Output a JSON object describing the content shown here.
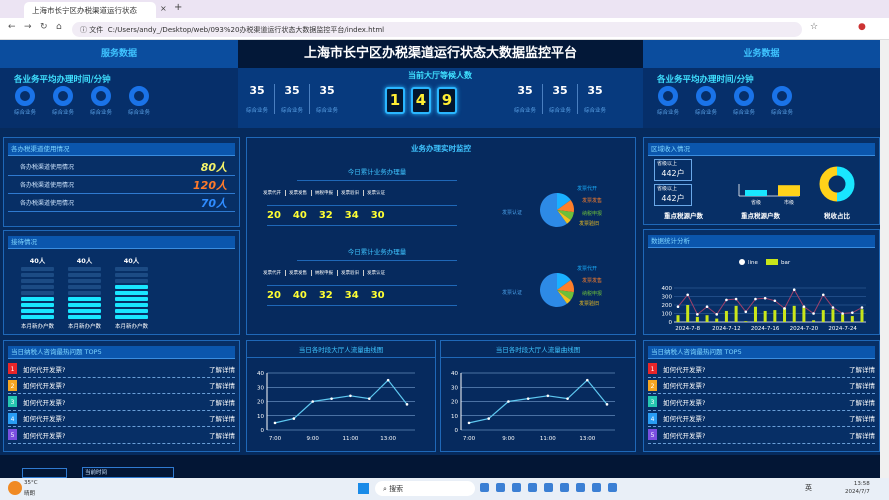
{
  "browser": {
    "tab_title": "上海市长宁区办税渠道运行状态",
    "url_prefix": "文件",
    "url": "C:/Users/andy_/Desktop/web/093%20办税渠道运行状态大数据监控平台/index.html"
  },
  "header": {
    "left_title": "服务数据",
    "title": "上海市长宁区办税渠道运行状态大数据监控平台",
    "right_title": "业务数据",
    "avg_time_label": "各业务平均办理时间/分钟",
    "rings": [
      "综合业务",
      "综合业务",
      "综合业务",
      "综合业务"
    ],
    "stats_left": [
      {
        "value": "35",
        "label": "综合业务"
      },
      {
        "value": "35",
        "label": "综合业务"
      },
      {
        "value": "35",
        "label": "综合业务"
      }
    ],
    "stats_right": [
      {
        "value": "35",
        "label": "综合业务"
      },
      {
        "value": "35",
        "label": "综合业务"
      },
      {
        "value": "35",
        "label": "综合业务"
      }
    ],
    "waiting_label": "当前大厅等候人数",
    "waiting_digits": [
      "1",
      "4",
      "9"
    ]
  },
  "channel": {
    "title": "各办税渠道使用情况",
    "rows": [
      {
        "label": "各办税渠道使用情况",
        "value": "80人",
        "color": "#f3f36a"
      },
      {
        "label": "各办税渠道使用情况",
        "value": "120人",
        "color": "#ff7a2a"
      },
      {
        "label": "各办税渠道使用情况",
        "value": "70人",
        "color": "#2f8cff"
      }
    ]
  },
  "reception": {
    "title": "接待情况",
    "cols": [
      {
        "value": "40人",
        "label": "本月新办户数",
        "level": 4
      },
      {
        "value": "40人",
        "label": "本月新办户数",
        "level": 4
      },
      {
        "value": "40人",
        "label": "本月新办户数",
        "level": 6
      }
    ],
    "segments": 9
  },
  "monitor": {
    "title": "业务办理实时监控",
    "blocks": [
      {
        "subtitle": "今日累计业务办理量",
        "items": [
          "发票代开",
          "发票发售",
          "纳税申报",
          "发票验旧",
          "发票认证"
        ],
        "values": [
          "20",
          "40",
          "32",
          "34",
          "30"
        ]
      },
      {
        "subtitle": "今日累计业务办理量",
        "items": [
          "发票代开",
          "发票发售",
          "纳税申报",
          "发票验旧",
          "发票认证"
        ],
        "values": [
          "20",
          "40",
          "32",
          "34",
          "30"
        ]
      }
    ]
  },
  "chart_data": [
    {
      "type": "pie",
      "categories": [
        "发票代开",
        "发票发售",
        "纳税申报",
        "发票验旧",
        "发票认证"
      ],
      "values": [
        15,
        12,
        8,
        5,
        60
      ],
      "colors": [
        "#1ab0ff",
        "#ff7f2a",
        "#6cbf3a",
        "#f0c020",
        "#2d8ae6"
      ]
    },
    {
      "type": "pie",
      "categories": [
        "发票代开",
        "发票发售",
        "纳税申报",
        "发票验旧",
        "发票认证"
      ],
      "values": [
        15,
        12,
        8,
        5,
        60
      ],
      "colors": [
        "#1ab0ff",
        "#ff7f2a",
        "#6cbf3a",
        "#f0c020",
        "#2d8ae6"
      ]
    },
    {
      "type": "line",
      "title": "当日各时段大厅人流量曲线图",
      "x": [
        "7:00",
        "8:00",
        "9:00",
        "10:00",
        "11:00",
        "12:00",
        "13:00",
        "14:00"
      ],
      "values": [
        5,
        8,
        20,
        22,
        24,
        22,
        35,
        18
      ],
      "xticks": [
        "7:00",
        "9:00",
        "11:00",
        "13:00"
      ],
      "ylim": [
        0,
        40
      ],
      "yticks": [
        0,
        10,
        20,
        30,
        40
      ]
    },
    {
      "type": "line",
      "title": "当日各时段大厅人流量曲线图",
      "x": [
        "7:00",
        "8:00",
        "9:00",
        "10:00",
        "11:00",
        "12:00",
        "13:00",
        "14:00"
      ],
      "values": [
        5,
        8,
        20,
        22,
        24,
        22,
        35,
        18
      ],
      "xticks": [
        "7:00",
        "9:00",
        "11:00",
        "13:00"
      ],
      "ylim": [
        0,
        40
      ],
      "yticks": [
        0,
        10,
        20,
        30,
        40
      ]
    },
    {
      "type": "bar",
      "title": "数据统计分析",
      "legend": [
        "line",
        "bar"
      ],
      "x": [
        "2024-7-7",
        "2024-7-8",
        "2024-7-9",
        "2024-7-10",
        "2024-7-11",
        "2024-7-12",
        "2024-7-13",
        "2024-7-14",
        "2024-7-15",
        "2024-7-16",
        "2024-7-17",
        "2024-7-18",
        "2024-7-19",
        "2024-7-20",
        "2024-7-21",
        "2024-7-22",
        "2024-7-23",
        "2024-7-24",
        "2024-7-25",
        "2024-7-26"
      ],
      "xticks": [
        "2024-7-8",
        "2024-7-12",
        "2024-7-16",
        "2024-7-20",
        "2024-7-24"
      ],
      "ylim": [
        0,
        400
      ],
      "yticks": [
        0,
        100,
        200,
        300,
        400
      ],
      "series": [
        {
          "name": "line",
          "values": [
            180,
            320,
            90,
            180,
            90,
            260,
            270,
            120,
            270,
            280,
            250,
            160,
            380,
            180,
            100,
            320,
            170,
            100,
            110,
            170
          ]
        },
        {
          "name": "bar",
          "values": [
            80,
            200,
            60,
            80,
            40,
            130,
            190,
            10,
            180,
            130,
            140,
            170,
            190,
            180,
            20,
            140,
            150,
            90,
            70,
            150
          ]
        }
      ]
    },
    {
      "type": "bar",
      "categories": [
        "省级",
        "市级"
      ],
      "values": [
        50,
        90
      ]
    },
    {
      "type": "pie",
      "title": "税收占比",
      "values": [
        50,
        50
      ],
      "colors": [
        "#19e6ff",
        "#ffd21a"
      ]
    }
  ],
  "region": {
    "title": "区域收入情况",
    "boxes": [
      {
        "label": "省级以上",
        "value": "442户"
      },
      {
        "label": "省级以上",
        "value": "442户"
      }
    ],
    "caption1": "重点税源户数",
    "caption2": "重点税源户数",
    "caption3": "税收占比"
  },
  "hot": {
    "title": "当日纳税人咨询最热问题 TOP5",
    "items": [
      {
        "rank": "1",
        "q": "如何代开发票?",
        "link": "了解详情",
        "color": "#e8262a"
      },
      {
        "rank": "2",
        "q": "如何代开发票?",
        "link": "了解详情",
        "color": "#f5a623"
      },
      {
        "rank": "3",
        "q": "如何代开发票?",
        "link": "了解详情",
        "color": "#25c7b0"
      },
      {
        "rank": "4",
        "q": "如何代开发票?",
        "link": "了解详情",
        "color": "#2a9df4"
      },
      {
        "rank": "5",
        "q": "如何代开发票?",
        "link": "了解详情",
        "color": "#7b4fe0"
      }
    ]
  },
  "footer": {
    "time_label": "当前时间"
  },
  "taskbar": {
    "weather": "35°C",
    "weather_desc": "晴朗",
    "search": "搜索",
    "ime": "英",
    "time": "13:58",
    "date": "2024/7/7"
  }
}
